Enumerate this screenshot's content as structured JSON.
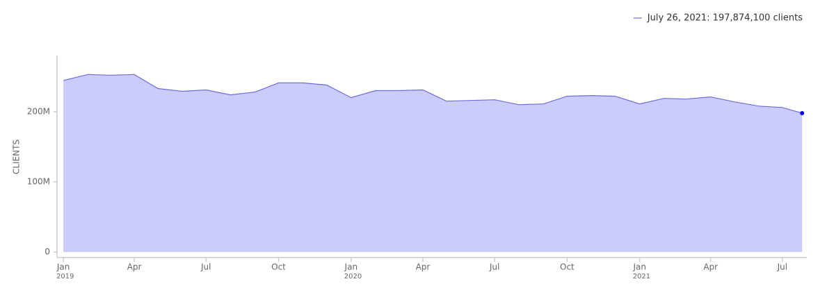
{
  "chart_data": {
    "type": "area",
    "y_label": "CLIENTS",
    "x": [
      "2019-01",
      "2019-02",
      "2019-03",
      "2019-04",
      "2019-05",
      "2019-06",
      "2019-07",
      "2019-08",
      "2019-09",
      "2019-10",
      "2019-11",
      "2019-12",
      "2020-01",
      "2020-02",
      "2020-03",
      "2020-04",
      "2020-05",
      "2020-06",
      "2020-07",
      "2020-08",
      "2020-09",
      "2020-10",
      "2020-11",
      "2020-12",
      "2021-01",
      "2021-02",
      "2021-03",
      "2021-04",
      "2021-05",
      "2021-06",
      "2021-07",
      "2021-07-26"
    ],
    "series": [
      {
        "name": "July 26, 2021: 197,874,100 clients",
        "color": "#6b6bdf",
        "fill": "#ccccfc",
        "marker_color": "#0000ee",
        "values": [
          244500000,
          253000000,
          252000000,
          253000000,
          233000000,
          229000000,
          231000000,
          224000000,
          228000000,
          241000000,
          241000000,
          238000000,
          220000000,
          230000000,
          230000000,
          231000000,
          215000000,
          216000000,
          217000000,
          210000000,
          211000000,
          222000000,
          223000000,
          222000000,
          211000000,
          219000000,
          218000000,
          221000000,
          214000000,
          208000000,
          206000000,
          197874100
        ]
      }
    ],
    "ylim": [
      0,
      280000000
    ],
    "yticks": [
      0,
      {
        "value": 100000000,
        "label": "100M"
      },
      {
        "value": 200000000,
        "label": "200M"
      }
    ],
    "xlim": [
      "2018-12-24",
      "2021-08-01"
    ],
    "xticks": [
      {
        "value": "2019-01",
        "label": "Jan",
        "year": "2019"
      },
      {
        "value": "2019-04",
        "label": "Apr"
      },
      {
        "value": "2019-07",
        "label": "Jul"
      },
      {
        "value": "2019-10",
        "label": "Oct"
      },
      {
        "value": "2020-01",
        "label": "Jan",
        "year": "2020"
      },
      {
        "value": "2020-04",
        "label": "Apr"
      },
      {
        "value": "2020-07",
        "label": "Jul"
      },
      {
        "value": "2020-10",
        "label": "Oct"
      },
      {
        "value": "2021-01",
        "label": "Jan",
        "year": "2021"
      },
      {
        "value": "2021-04",
        "label": "Apr"
      },
      {
        "value": "2021-07",
        "label": "Jul"
      }
    ],
    "legend": "top-right"
  }
}
